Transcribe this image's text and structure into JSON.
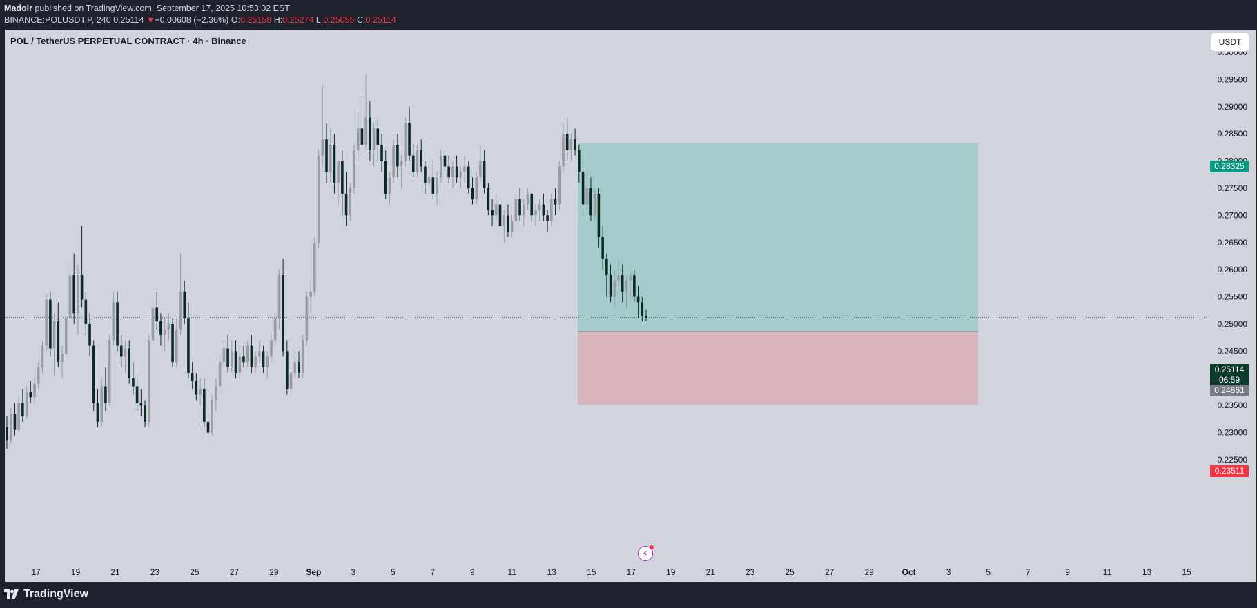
{
  "header": {
    "author": "Madoir",
    "published_text": " published on TradingView.com, September 17, 2025 10:53:02 EST",
    "symbol": "BINANCE:POLUSDT.P, 240",
    "last": "0.25114",
    "change_arrow": "▼",
    "change": "−0.00608 (−2.36%)",
    "o_label": "O:",
    "o_value": "0.25158",
    "h_label": "H:",
    "h_value": "0.25274",
    "l_label": "L:",
    "l_value": "0.25055",
    "c_label": "C:",
    "c_value": "0.25114"
  },
  "chart": {
    "title": "POL / TetherUS PERPETUAL CONTRACT · 4h · Binance",
    "currency_button": "USDT",
    "price_axis_labels": [
      "0.30000",
      "0.29500",
      "0.29000",
      "0.28500",
      "0.28000",
      "0.27500",
      "0.27000",
      "0.26500",
      "0.26000",
      "0.25500",
      "0.25000",
      "0.24500",
      "0.24000",
      "0.23500",
      "0.23000",
      "0.22500"
    ],
    "date_axis_labels": [
      "17",
      "19",
      "21",
      "23",
      "25",
      "27",
      "29",
      "Sep",
      "3",
      "5",
      "7",
      "9",
      "11",
      "13",
      "15",
      "17",
      "19",
      "21",
      "23",
      "25",
      "27",
      "29",
      "Oct",
      "3",
      "5",
      "7",
      "9",
      "11",
      "13",
      "15"
    ],
    "badges": {
      "target": "0.28325",
      "current": "0.25114",
      "countdown": "06:59",
      "entry": "0.24861",
      "stop": "0.23511"
    },
    "colors": {
      "background": "#d1d4dc",
      "bull": "#9a9ca3",
      "bear": "#0d2a22",
      "target_zone": "#a6cbcb",
      "stop_zone": "#d8b4bd",
      "target_badge": "#089981",
      "stop_badge": "#f23645",
      "entry_badge": "#787b86",
      "current_badge": "#0d3b2e"
    },
    "icons": [
      "flash-icon",
      "tradingview-logo-icon"
    ]
  },
  "footer": {
    "brand": "TradingView"
  },
  "chart_data": {
    "type": "candlestick",
    "symbol": "BINANCE:POLUSDT.P",
    "timeframe": "4h",
    "ylim": [
      0.222,
      0.302
    ],
    "last_price": 0.25114,
    "position": {
      "side": "short",
      "entry": 0.24861,
      "target": 0.28325,
      "stop": 0.23511
    },
    "candles": [
      [
        0.231,
        0.233,
        0.227,
        0.2285
      ],
      [
        0.2285,
        0.2345,
        0.228,
        0.2335
      ],
      [
        0.2335,
        0.2355,
        0.2295,
        0.2305
      ],
      [
        0.2305,
        0.2365,
        0.23,
        0.2355
      ],
      [
        0.2355,
        0.238,
        0.232,
        0.233
      ],
      [
        0.233,
        0.2385,
        0.2325,
        0.2375
      ],
      [
        0.2375,
        0.2395,
        0.2355,
        0.2365
      ],
      [
        0.2365,
        0.24,
        0.2355,
        0.239
      ],
      [
        0.239,
        0.243,
        0.238,
        0.242
      ],
      [
        0.242,
        0.247,
        0.241,
        0.246
      ],
      [
        0.246,
        0.2555,
        0.245,
        0.2545
      ],
      [
        0.2545,
        0.256,
        0.244,
        0.2455
      ],
      [
        0.2455,
        0.252,
        0.2405,
        0.2505
      ],
      [
        0.2505,
        0.254,
        0.242,
        0.243
      ],
      [
        0.243,
        0.246,
        0.24,
        0.2445
      ],
      [
        0.2445,
        0.252,
        0.244,
        0.251
      ],
      [
        0.251,
        0.261,
        0.25,
        0.259
      ],
      [
        0.259,
        0.263,
        0.25,
        0.252
      ],
      [
        0.252,
        0.261,
        0.248,
        0.259
      ],
      [
        0.259,
        0.268,
        0.253,
        0.2545
      ],
      [
        0.2545,
        0.256,
        0.248,
        0.25
      ],
      [
        0.25,
        0.252,
        0.244,
        0.246
      ],
      [
        0.246,
        0.247,
        0.234,
        0.2355
      ],
      [
        0.2355,
        0.238,
        0.231,
        0.232
      ],
      [
        0.232,
        0.24,
        0.231,
        0.2385
      ],
      [
        0.2385,
        0.242,
        0.234,
        0.2355
      ],
      [
        0.2355,
        0.248,
        0.235,
        0.247
      ],
      [
        0.247,
        0.256,
        0.246,
        0.254
      ],
      [
        0.254,
        0.256,
        0.245,
        0.246
      ],
      [
        0.246,
        0.248,
        0.242,
        0.244
      ],
      [
        0.244,
        0.247,
        0.241,
        0.2455
      ],
      [
        0.2455,
        0.247,
        0.239,
        0.24
      ],
      [
        0.24,
        0.243,
        0.237,
        0.2385
      ],
      [
        0.2385,
        0.24,
        0.234,
        0.2355
      ],
      [
        0.2355,
        0.238,
        0.233,
        0.235
      ],
      [
        0.235,
        0.236,
        0.231,
        0.232
      ],
      [
        0.232,
        0.248,
        0.231,
        0.247
      ],
      [
        0.247,
        0.254,
        0.246,
        0.253
      ],
      [
        0.253,
        0.256,
        0.249,
        0.2505
      ],
      [
        0.2505,
        0.252,
        0.246,
        0.248
      ],
      [
        0.248,
        0.251,
        0.245,
        0.249
      ],
      [
        0.249,
        0.252,
        0.247,
        0.25
      ],
      [
        0.25,
        0.251,
        0.242,
        0.243
      ],
      [
        0.243,
        0.251,
        0.242,
        0.249
      ],
      [
        0.249,
        0.263,
        0.248,
        0.256
      ],
      [
        0.256,
        0.258,
        0.25,
        0.251
      ],
      [
        0.251,
        0.254,
        0.24,
        0.241
      ],
      [
        0.241,
        0.243,
        0.238,
        0.2395
      ],
      [
        0.2395,
        0.241,
        0.236,
        0.237
      ],
      [
        0.237,
        0.24,
        0.235,
        0.238
      ],
      [
        0.238,
        0.24,
        0.231,
        0.232
      ],
      [
        0.232,
        0.234,
        0.229,
        0.23
      ],
      [
        0.23,
        0.237,
        0.2295,
        0.236
      ],
      [
        0.236,
        0.24,
        0.234,
        0.2385
      ],
      [
        0.2385,
        0.244,
        0.237,
        0.243
      ],
      [
        0.243,
        0.247,
        0.242,
        0.2455
      ],
      [
        0.2455,
        0.248,
        0.241,
        0.242
      ],
      [
        0.242,
        0.247,
        0.241,
        0.245
      ],
      [
        0.245,
        0.247,
        0.24,
        0.241
      ],
      [
        0.241,
        0.246,
        0.24,
        0.244
      ],
      [
        0.244,
        0.246,
        0.242,
        0.243
      ],
      [
        0.243,
        0.247,
        0.242,
        0.246
      ],
      [
        0.246,
        0.248,
        0.241,
        0.242
      ],
      [
        0.242,
        0.245,
        0.241,
        0.244
      ],
      [
        0.244,
        0.247,
        0.243,
        0.245
      ],
      [
        0.245,
        0.246,
        0.241,
        0.242
      ],
      [
        0.242,
        0.245,
        0.24,
        0.244
      ],
      [
        0.244,
        0.248,
        0.243,
        0.247
      ],
      [
        0.247,
        0.252,
        0.246,
        0.251
      ],
      [
        0.251,
        0.26,
        0.249,
        0.259
      ],
      [
        0.259,
        0.262,
        0.244,
        0.245
      ],
      [
        0.245,
        0.247,
        0.237,
        0.238
      ],
      [
        0.238,
        0.242,
        0.237,
        0.241
      ],
      [
        0.241,
        0.245,
        0.24,
        0.243
      ],
      [
        0.243,
        0.245,
        0.24,
        0.241
      ],
      [
        0.241,
        0.248,
        0.24,
        0.247
      ],
      [
        0.247,
        0.256,
        0.246,
        0.255
      ],
      [
        0.255,
        0.258,
        0.252,
        0.256
      ],
      [
        0.256,
        0.266,
        0.255,
        0.265
      ],
      [
        0.265,
        0.282,
        0.264,
        0.281
      ],
      [
        0.281,
        0.294,
        0.279,
        0.284
      ],
      [
        0.284,
        0.287,
        0.276,
        0.278
      ],
      [
        0.278,
        0.286,
        0.276,
        0.283
      ],
      [
        0.283,
        0.285,
        0.274,
        0.276
      ],
      [
        0.276,
        0.28,
        0.272,
        0.28
      ],
      [
        0.28,
        0.282,
        0.27,
        0.274
      ],
      [
        0.274,
        0.278,
        0.268,
        0.27
      ],
      [
        0.27,
        0.276,
        0.269,
        0.275
      ],
      [
        0.275,
        0.283,
        0.274,
        0.282
      ],
      [
        0.282,
        0.289,
        0.28,
        0.286
      ],
      [
        0.286,
        0.292,
        0.281,
        0.283
      ],
      [
        0.283,
        0.296,
        0.282,
        0.288
      ],
      [
        0.288,
        0.291,
        0.28,
        0.282
      ],
      [
        0.282,
        0.287,
        0.279,
        0.286
      ],
      [
        0.286,
        0.288,
        0.28,
        0.283
      ],
      [
        0.283,
        0.285,
        0.278,
        0.28
      ],
      [
        0.28,
        0.282,
        0.273,
        0.274
      ],
      [
        0.274,
        0.278,
        0.272,
        0.277
      ],
      [
        0.277,
        0.284,
        0.276,
        0.283
      ],
      [
        0.283,
        0.285,
        0.277,
        0.279
      ],
      [
        0.279,
        0.281,
        0.275,
        0.28
      ],
      [
        0.28,
        0.288,
        0.279,
        0.287
      ],
      [
        0.287,
        0.29,
        0.28,
        0.281
      ],
      [
        0.281,
        0.283,
        0.277,
        0.278
      ],
      [
        0.278,
        0.283,
        0.277,
        0.282
      ],
      [
        0.282,
        0.284,
        0.278,
        0.279
      ],
      [
        0.279,
        0.28,
        0.274,
        0.276
      ],
      [
        0.276,
        0.279,
        0.274,
        0.277
      ],
      [
        0.277,
        0.28,
        0.273,
        0.274
      ],
      [
        0.274,
        0.278,
        0.272,
        0.277
      ],
      [
        0.277,
        0.282,
        0.276,
        0.281
      ],
      [
        0.281,
        0.282,
        0.278,
        0.279
      ],
      [
        0.279,
        0.281,
        0.276,
        0.277
      ],
      [
        0.277,
        0.28,
        0.275,
        0.279
      ],
      [
        0.279,
        0.281,
        0.276,
        0.277
      ],
      [
        0.277,
        0.279,
        0.275,
        0.278
      ],
      [
        0.278,
        0.281,
        0.276,
        0.279
      ],
      [
        0.279,
        0.28,
        0.274,
        0.275
      ],
      [
        0.275,
        0.277,
        0.272,
        0.273
      ],
      [
        0.273,
        0.278,
        0.272,
        0.277
      ],
      [
        0.277,
        0.283,
        0.276,
        0.28
      ],
      [
        0.28,
        0.282,
        0.274,
        0.275
      ],
      [
        0.275,
        0.276,
        0.27,
        0.271
      ],
      [
        0.271,
        0.273,
        0.268,
        0.27
      ],
      [
        0.27,
        0.274,
        0.269,
        0.272
      ],
      [
        0.272,
        0.273,
        0.267,
        0.268
      ],
      [
        0.268,
        0.271,
        0.265,
        0.27
      ],
      [
        0.27,
        0.272,
        0.266,
        0.267
      ],
      [
        0.267,
        0.27,
        0.266,
        0.269
      ],
      [
        0.269,
        0.274,
        0.268,
        0.273
      ],
      [
        0.273,
        0.275,
        0.269,
        0.27
      ],
      [
        0.27,
        0.273,
        0.268,
        0.272
      ],
      [
        0.272,
        0.275,
        0.271,
        0.274
      ],
      [
        0.274,
        0.274,
        0.269,
        0.27
      ],
      [
        0.27,
        0.272,
        0.268,
        0.271
      ],
      [
        0.271,
        0.273,
        0.269,
        0.272
      ],
      [
        0.272,
        0.274,
        0.269,
        0.27
      ],
      [
        0.27,
        0.271,
        0.267,
        0.269
      ],
      [
        0.269,
        0.274,
        0.268,
        0.273
      ],
      [
        0.273,
        0.275,
        0.27,
        0.272
      ],
      [
        0.272,
        0.28,
        0.271,
        0.279
      ],
      [
        0.279,
        0.287,
        0.278,
        0.285
      ],
      [
        0.285,
        0.288,
        0.28,
        0.282
      ],
      [
        0.282,
        0.285,
        0.28,
        0.284
      ],
      [
        0.284,
        0.286,
        0.281,
        0.282
      ],
      [
        0.282,
        0.283,
        0.276,
        0.278
      ],
      [
        0.278,
        0.279,
        0.27,
        0.272
      ],
      [
        0.272,
        0.278,
        0.271,
        0.275
      ],
      [
        0.275,
        0.277,
        0.269,
        0.27
      ],
      [
        0.27,
        0.275,
        0.269,
        0.274
      ],
      [
        0.274,
        0.275,
        0.264,
        0.266
      ],
      [
        0.266,
        0.268,
        0.26,
        0.262
      ],
      [
        0.262,
        0.263,
        0.255,
        0.259
      ],
      [
        0.259,
        0.261,
        0.254,
        0.255
      ],
      [
        0.255,
        0.26,
        0.253,
        0.258
      ],
      [
        0.258,
        0.262,
        0.257,
        0.259
      ],
      [
        0.259,
        0.261,
        0.254,
        0.256
      ],
      [
        0.256,
        0.259,
        0.253,
        0.258
      ],
      [
        0.258,
        0.26,
        0.255,
        0.259
      ],
      [
        0.259,
        0.26,
        0.254,
        0.255
      ],
      [
        0.255,
        0.257,
        0.251,
        0.254
      ],
      [
        0.254,
        0.255,
        0.2505,
        0.2515
      ],
      [
        0.2515,
        0.2527,
        0.2505,
        0.25114
      ]
    ]
  }
}
